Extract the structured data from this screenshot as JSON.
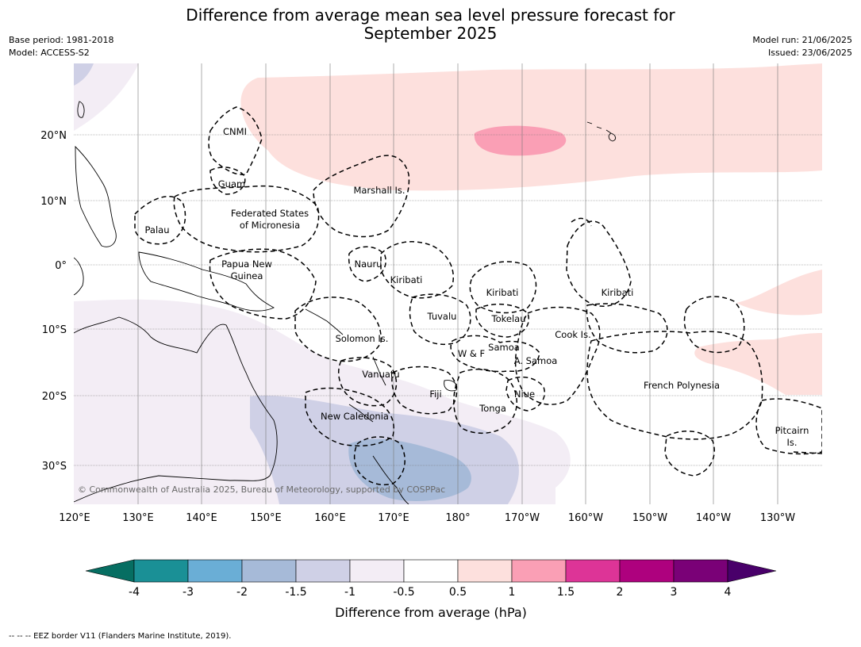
{
  "title_line1": "Difference from average mean sea level pressure forecast for",
  "title_line2": "September 2025",
  "meta_left": {
    "base_period": "Base period: 1981-2018",
    "model": "Model: ACCESS-S2"
  },
  "meta_right": {
    "model_run": "Model run: 21/06/2025",
    "issued": "Issued: 23/06/2025"
  },
  "map": {
    "lat_labels": [
      "20°N",
      "10°N",
      "0°",
      "10°S",
      "20°S",
      "30°S"
    ],
    "lon_labels": [
      "120°E",
      "130°E",
      "140°E",
      "150°E",
      "160°E",
      "170°E",
      "180°",
      "170°W",
      "160°W",
      "150°W",
      "140°W",
      "130°W"
    ],
    "regions": {
      "cnmi": "CNMI",
      "guam": "Guam",
      "marshall": "Marshall Is.",
      "palau": "Palau",
      "fsm_1": "Federated States",
      "fsm_2": "of Micronesia",
      "png_1": "Papua New",
      "png_2": "Guinea",
      "nauru": "Nauru",
      "kiribati_west": "Kiribati",
      "kiribati_central": "Kiribati",
      "kiribati_east": "Kiribati",
      "tuvalu": "Tuvalu",
      "tokelau": "Tokelau",
      "solomon": "Solomon Is.",
      "samoa": "Samoa",
      "wf": "W & F",
      "asamoa": "A. Samoa",
      "cook": "Cook Is.",
      "vanuatu": "Vanuatu",
      "fiji": "Fiji",
      "niue": "Niue",
      "tonga": "Tonga",
      "new_caledonia": "New Caledonia",
      "french_polynesia": "French Polynesia",
      "pitcairn_1": "Pitcairn",
      "pitcairn_2": "Is."
    },
    "copyright": "© Commonwealth of Australia 2025, Bureau of Meteorology, supported by COSPPac"
  },
  "colorbar": {
    "ticks": [
      "-4",
      "-3",
      "-2",
      "-1.5",
      "-1",
      "-0.5",
      "0.5",
      "1",
      "1.5",
      "2",
      "3",
      "4"
    ],
    "colors": [
      "#1a9096",
      "#6aaed6",
      "#a6bad8",
      "#cfd0e6",
      "#f3edf5",
      "#ffffff",
      "#fde0dd",
      "#fa9fb5",
      "#dd3497",
      "#ae017e",
      "#7a0177"
    ],
    "low_extend_color": "#066e62",
    "high_extend_color": "#49006a",
    "title": "Difference from average (hPa)"
  },
  "footnote": "--  --  -- EEZ border V11 (Flanders Marine Institute, 2019)."
}
